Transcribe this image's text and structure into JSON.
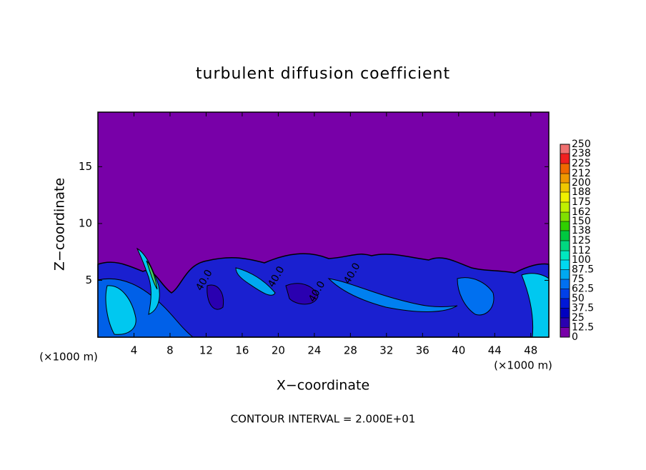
{
  "chart_data": {
    "type": "contour",
    "title": "turbulent diffusion coefficient",
    "x_label": "X−coordinate",
    "y_label": "Z−coordinate",
    "x_unit_labels": [
      "(×1000 m)",
      "(×1000 m)"
    ],
    "footer": "CONTOUR INTERVAL = 2.000E+01",
    "xlim": [
      0,
      50
    ],
    "xticks": [
      4,
      8,
      12,
      16,
      20,
      24,
      28,
      32,
      36,
      40,
      44,
      48
    ],
    "ylim": [
      0,
      19.8
    ],
    "yticks": [
      5,
      10,
      15
    ],
    "annotations": [
      {
        "text": "40.0",
        "x": 11.8,
        "y": 5.0
      },
      {
        "text": "40.0",
        "x": 19.8,
        "y": 5.3
      },
      {
        "text": "40.0",
        "x": 24.3,
        "y": 4.0
      },
      {
        "text": "40.0",
        "x": 28.2,
        "y": 5.6
      }
    ],
    "colorbar": {
      "levels": [
        0,
        12.5,
        25,
        37.5,
        50,
        62.5,
        75,
        87.5,
        100,
        112,
        125,
        138,
        150,
        162,
        175,
        188,
        200,
        212,
        225,
        238,
        250
      ],
      "colors": [
        "#7800a8",
        "#2a00b0",
        "#0000c0",
        "#0018d8",
        "#0040e8",
        "#0070f0",
        "#00a8f0",
        "#00d8f0",
        "#00e8c0",
        "#00d880",
        "#00c840",
        "#30d000",
        "#80e000",
        "#c0f000",
        "#f0f000",
        "#f0c800",
        "#f09800",
        "#f06800",
        "#f02020",
        "#f07070"
      ]
    }
  }
}
